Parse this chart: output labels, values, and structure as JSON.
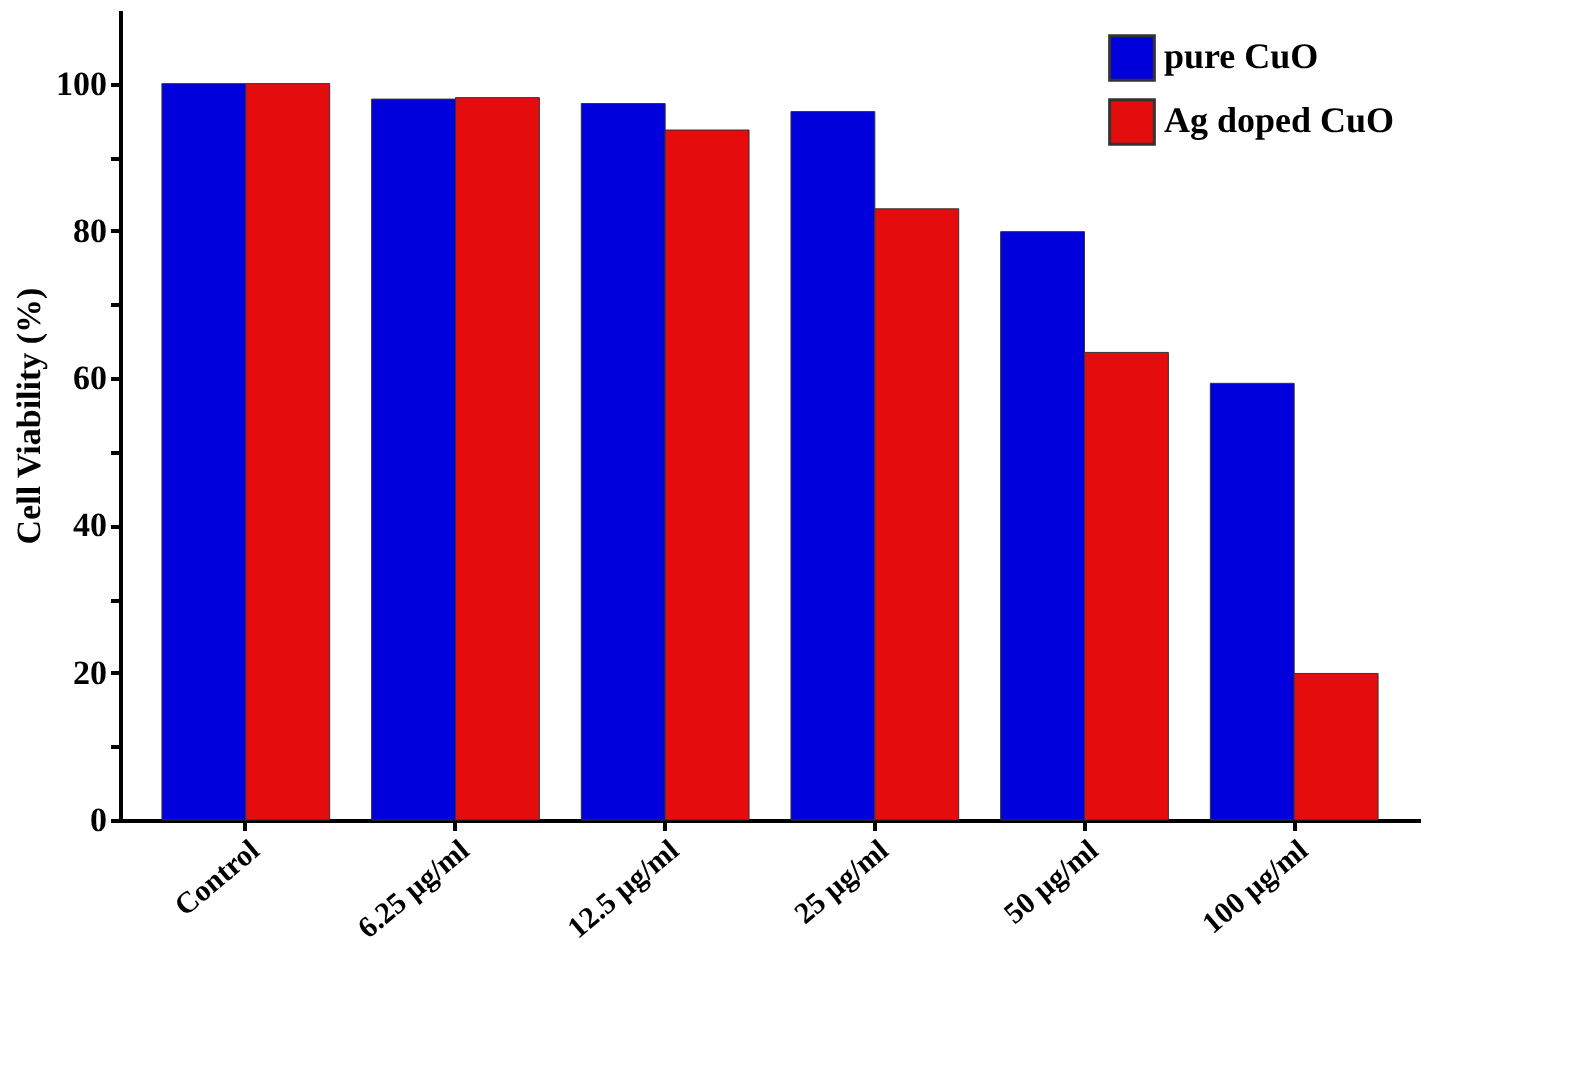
{
  "chart_data": {
    "type": "bar",
    "ylabel": "Cell Viability (%)",
    "categories": [
      "Control",
      "6.25 µg/ml",
      "12.5 µg/ml",
      "25 µg/ml",
      "50 µg/ml",
      "100 µg/ml"
    ],
    "series": [
      {
        "name": "pure CuO",
        "color": "#0000dd",
        "values": [
          100,
          97.9,
          97.3,
          96.2,
          79.9,
          59.3
        ]
      },
      {
        "name": "Ag doped CuO",
        "color": "#e40c0c",
        "values": [
          100,
          98.1,
          93.7,
          83.0,
          63.5,
          19.9
        ]
      }
    ],
    "ylim": [
      0,
      110
    ],
    "yticks": [
      0,
      {
        "value": 10,
        "label": null
      },
      20,
      {
        "value": 30,
        "label": null
      },
      40,
      {
        "value": 50,
        "label": null
      },
      60,
      {
        "value": 70,
        "label": null
      },
      80,
      {
        "value": 90,
        "label": null
      },
      100
    ],
    "grid": false,
    "legend": "top right"
  }
}
